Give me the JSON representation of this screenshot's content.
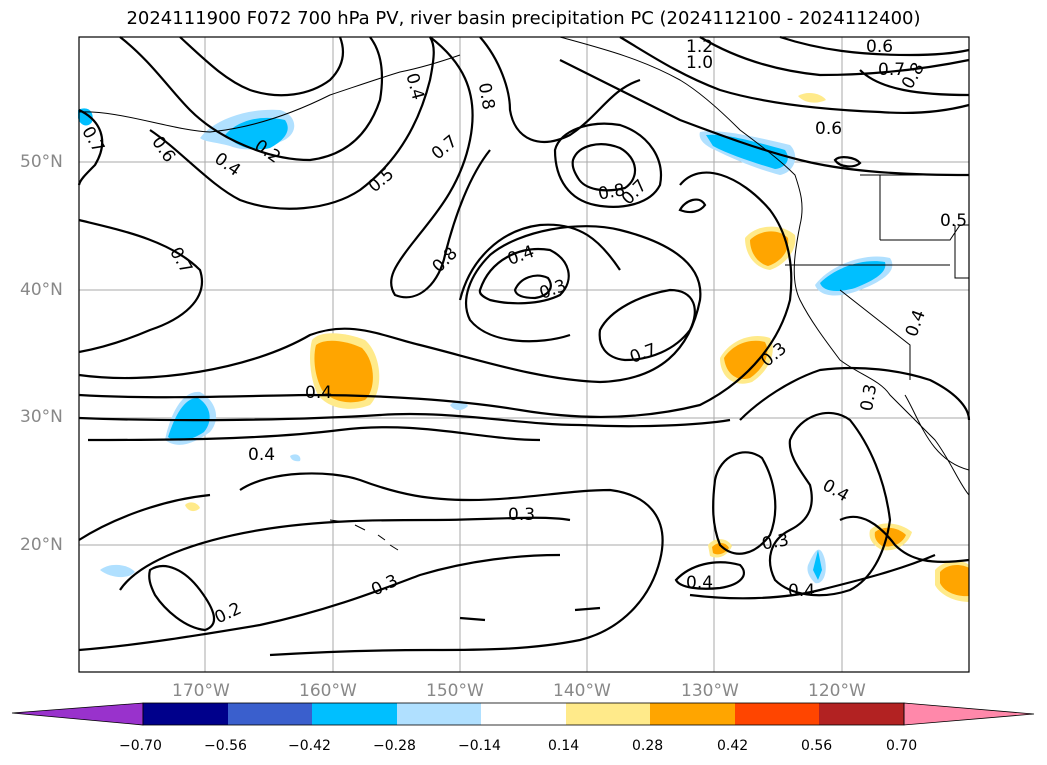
{
  "title": "2024111900 F072 700 hPa PV, river basin precipitation PC (2024112100 - 2024112400)",
  "lat_labels": [
    "50°N",
    "40°N",
    "30°N",
    "20°N"
  ],
  "lon_labels": [
    "170°W",
    "160°W",
    "150°W",
    "140°W",
    "130°W",
    "120°W"
  ],
  "contour_labels": [
    "1.2",
    "1.0",
    "0.6",
    "0.7",
    "0.8",
    "0.6",
    "0.7",
    "0.6",
    "0.2",
    "0.4",
    "0.5",
    "0.7",
    "0.8",
    "0.8",
    "0.7",
    "0.4",
    "0.3",
    "0.8",
    "0.7",
    "0.5",
    "0.4",
    "0.3",
    "0.7",
    "0.4",
    "0.3",
    "0.3",
    "0.4",
    "0.3",
    "0.4",
    "0.3",
    "0.2",
    "0.4",
    "0.4",
    "0.4"
  ],
  "colorbar": {
    "ticks": [
      "−0.70",
      "−0.56",
      "−0.42",
      "−0.28",
      "−0.14",
      "0.14",
      "0.28",
      "0.42",
      "0.56",
      "0.70"
    ],
    "colors": [
      "#9932cc",
      "#00008b",
      "#3a5fcd",
      "#00bfff",
      "#b0e0ff",
      "#ffffff",
      "#ffea8a",
      "#ffa500",
      "#ff4500",
      "#b22222",
      "#ff88aa"
    ],
    "extend": "both"
  },
  "shading_colors": {
    "neg_light": "#b0e0ff",
    "neg": "#00bfff",
    "pos_light": "#ffea8a",
    "pos": "#ffa500"
  }
}
